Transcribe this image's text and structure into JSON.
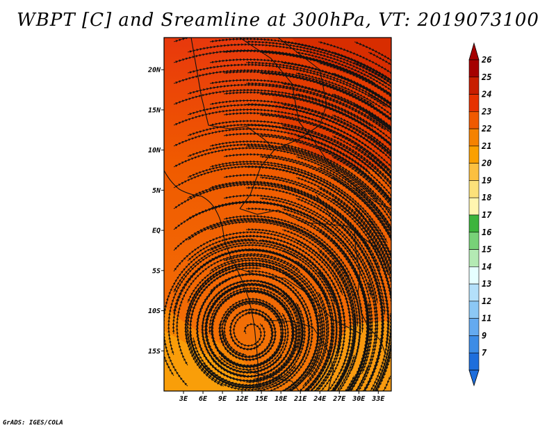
{
  "title": "WBPT [C] and Sreamline at 300hPa, VT: 2019073100",
  "credit": "GrADS: IGES/COLA",
  "map": {
    "lat_range": [
      -20,
      24
    ],
    "lon_range": [
      0,
      35
    ],
    "lat_ticks": [
      {
        "value": 20,
        "label": "20N"
      },
      {
        "value": 15,
        "label": "15N"
      },
      {
        "value": 10,
        "label": "10N"
      },
      {
        "value": 5,
        "label": "5N"
      },
      {
        "value": 0,
        "label": "EQ"
      },
      {
        "value": -5,
        "label": "5S"
      },
      {
        "value": -10,
        "label": "10S"
      },
      {
        "value": -15,
        "label": "15S"
      }
    ],
    "lon_ticks": [
      {
        "value": 3,
        "label": "3E"
      },
      {
        "value": 6,
        "label": "6E"
      },
      {
        "value": 9,
        "label": "9E"
      },
      {
        "value": 12,
        "label": "12E"
      },
      {
        "value": 15,
        "label": "15E"
      },
      {
        "value": 18,
        "label": "18E"
      },
      {
        "value": 21,
        "label": "21E"
      },
      {
        "value": 24,
        "label": "24E"
      },
      {
        "value": 27,
        "label": "27E"
      },
      {
        "value": 30,
        "label": "30E"
      },
      {
        "value": 33,
        "label": "33E"
      }
    ]
  },
  "colorbar": {
    "levels": [
      {
        "label": "26",
        "color": "#a50000"
      },
      {
        "label": "25",
        "color": "#c81e00"
      },
      {
        "label": "24",
        "color": "#e63200"
      },
      {
        "label": "23",
        "color": "#f05a00"
      },
      {
        "label": "22",
        "color": "#f58200"
      },
      {
        "label": "21",
        "color": "#faa000"
      },
      {
        "label": "20",
        "color": "#fcc040"
      },
      {
        "label": "19",
        "color": "#fce17a"
      },
      {
        "label": "18",
        "color": "#fff5b0"
      },
      {
        "label": "17",
        "color": "#3cb43c"
      },
      {
        "label": "16",
        "color": "#78d278"
      },
      {
        "label": "15",
        "color": "#b4eab4"
      },
      {
        "label": "14",
        "color": "#e6ffff"
      },
      {
        "label": "13",
        "color": "#b4e0fa"
      },
      {
        "label": "12",
        "color": "#8cc8f5"
      },
      {
        "label": "11",
        "color": "#64aaf0"
      },
      {
        "label": "9",
        "color": "#3c8ce6"
      },
      {
        "label": "7",
        "color": "#1e6edc"
      }
    ],
    "tip_colors": {
      "top": "#a50000",
      "bottom": "#1e6edc"
    }
  }
}
